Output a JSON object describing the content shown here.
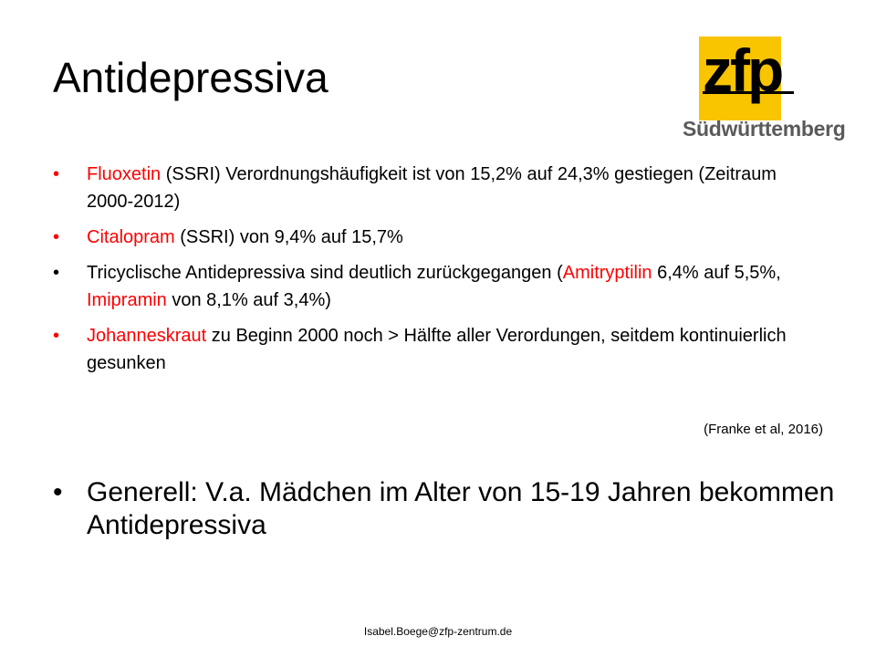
{
  "slide": {
    "title": "Antidepressiva",
    "logo": {
      "mark": "zfp",
      "subtitle": "Südwürttemberg",
      "accent_color": "#f9c400"
    },
    "bullet_symbol": "•",
    "bullets": [
      {
        "highlight": "Fluoxetin",
        "text": " (SSRI) Verordnungshäufigkeit ist von 15,2% auf 24,3% gestiegen (Zeitraum 2000-2012)"
      },
      {
        "highlight": "Citalopram",
        "text": " (SSRI) von 9,4% auf 15,7%"
      },
      {
        "t1": "Tricyclische Antidepressiva sind deutlich zurückgegangen (",
        "h1": "Amitryptilin",
        "t2": " 6,4% auf 5,5%, ",
        "h2": "Imipramin",
        "t3": " von 8,1% auf 3,4%)"
      },
      {
        "highlight": "Johanneskraut",
        "text": " zu Beginn 2000 noch > Hälfte aller Verordungen, seitdem kontinuierlich gesunken"
      }
    ],
    "citation": "(Franke et al, 2016)",
    "summary": "Generell: V.a. Mädchen im Alter von 15-19 Jahren bekommen Antidepressiva",
    "footer": "Isabel.Boege@zfp-zentrum.de",
    "highlight_color": "#ff0000"
  }
}
